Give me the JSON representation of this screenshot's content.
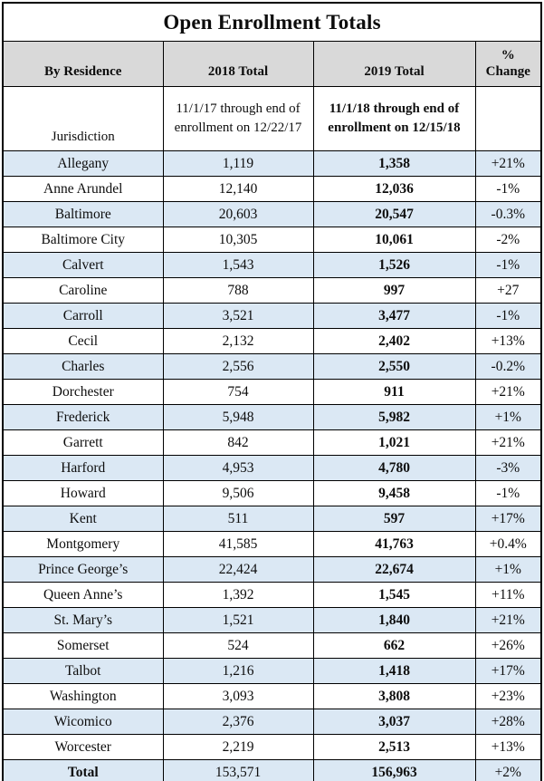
{
  "title": "Open Enrollment Totals",
  "columns": {
    "residence": "By Residence",
    "total2018": "2018 Total",
    "total2019": "2019 Total",
    "pct_line1": "%",
    "pct_line2": "Change"
  },
  "subheader": {
    "jurisdiction": "Jurisdiction",
    "note2018": "11/1/17 through end of enrollment on 12/22/17",
    "note2019": "11/1/18 through end of enrollment on 12/15/18"
  },
  "rows": [
    {
      "jurisdiction": "Allegany",
      "t2018": "1,119",
      "t2019": "1,358",
      "change": "+21%"
    },
    {
      "jurisdiction": "Anne Arundel",
      "t2018": "12,140",
      "t2019": "12,036",
      "change": "-1%"
    },
    {
      "jurisdiction": "Baltimore",
      "t2018": "20,603",
      "t2019": "20,547",
      "change": "-0.3%"
    },
    {
      "jurisdiction": "Baltimore City",
      "t2018": "10,305",
      "t2019": "10,061",
      "change": "-2%"
    },
    {
      "jurisdiction": "Calvert",
      "t2018": "1,543",
      "t2019": "1,526",
      "change": "-1%"
    },
    {
      "jurisdiction": "Caroline",
      "t2018": "788",
      "t2019": "997",
      "change": "+27"
    },
    {
      "jurisdiction": "Carroll",
      "t2018": "3,521",
      "t2019": "3,477",
      "change": "-1%"
    },
    {
      "jurisdiction": "Cecil",
      "t2018": "2,132",
      "t2019": "2,402",
      "change": "+13%"
    },
    {
      "jurisdiction": "Charles",
      "t2018": "2,556",
      "t2019": "2,550",
      "change": "-0.2%"
    },
    {
      "jurisdiction": "Dorchester",
      "t2018": "754",
      "t2019": "911",
      "change": "+21%"
    },
    {
      "jurisdiction": "Frederick",
      "t2018": "5,948",
      "t2019": "5,982",
      "change": "+1%"
    },
    {
      "jurisdiction": "Garrett",
      "t2018": "842",
      "t2019": "1,021",
      "change": "+21%"
    },
    {
      "jurisdiction": "Harford",
      "t2018": "4,953",
      "t2019": "4,780",
      "change": "-3%"
    },
    {
      "jurisdiction": "Howard",
      "t2018": "9,506",
      "t2019": "9,458",
      "change": "-1%"
    },
    {
      "jurisdiction": "Kent",
      "t2018": "511",
      "t2019": "597",
      "change": "+17%"
    },
    {
      "jurisdiction": "Montgomery",
      "t2018": "41,585",
      "t2019": "41,763",
      "change": "+0.4%"
    },
    {
      "jurisdiction": "Prince George’s",
      "t2018": "22,424",
      "t2019": "22,674",
      "change": "+1%"
    },
    {
      "jurisdiction": "Queen Anne’s",
      "t2018": "1,392",
      "t2019": "1,545",
      "change": "+11%"
    },
    {
      "jurisdiction": "St. Mary’s",
      "t2018": "1,521",
      "t2019": "1,840",
      "change": "+21%"
    },
    {
      "jurisdiction": "Somerset",
      "t2018": "524",
      "t2019": "662",
      "change": "+26%"
    },
    {
      "jurisdiction": "Talbot",
      "t2018": "1,216",
      "t2019": "1,418",
      "change": "+17%"
    },
    {
      "jurisdiction": "Washington",
      "t2018": "3,093",
      "t2019": "3,808",
      "change": "+23%"
    },
    {
      "jurisdiction": "Wicomico",
      "t2018": "2,376",
      "t2019": "3,037",
      "change": "+28%"
    },
    {
      "jurisdiction": "Worcester",
      "t2018": "2,219",
      "t2019": "2,513",
      "change": "+13%"
    }
  ],
  "total_row": {
    "jurisdiction": "Total",
    "t2018": "153,571",
    "t2019": "156,963",
    "change": "+2%"
  },
  "colors": {
    "header_bg": "#d9d9d9",
    "row_shade": "#dbe8f4",
    "border": "#000000",
    "text": "#0d0d0d"
  }
}
